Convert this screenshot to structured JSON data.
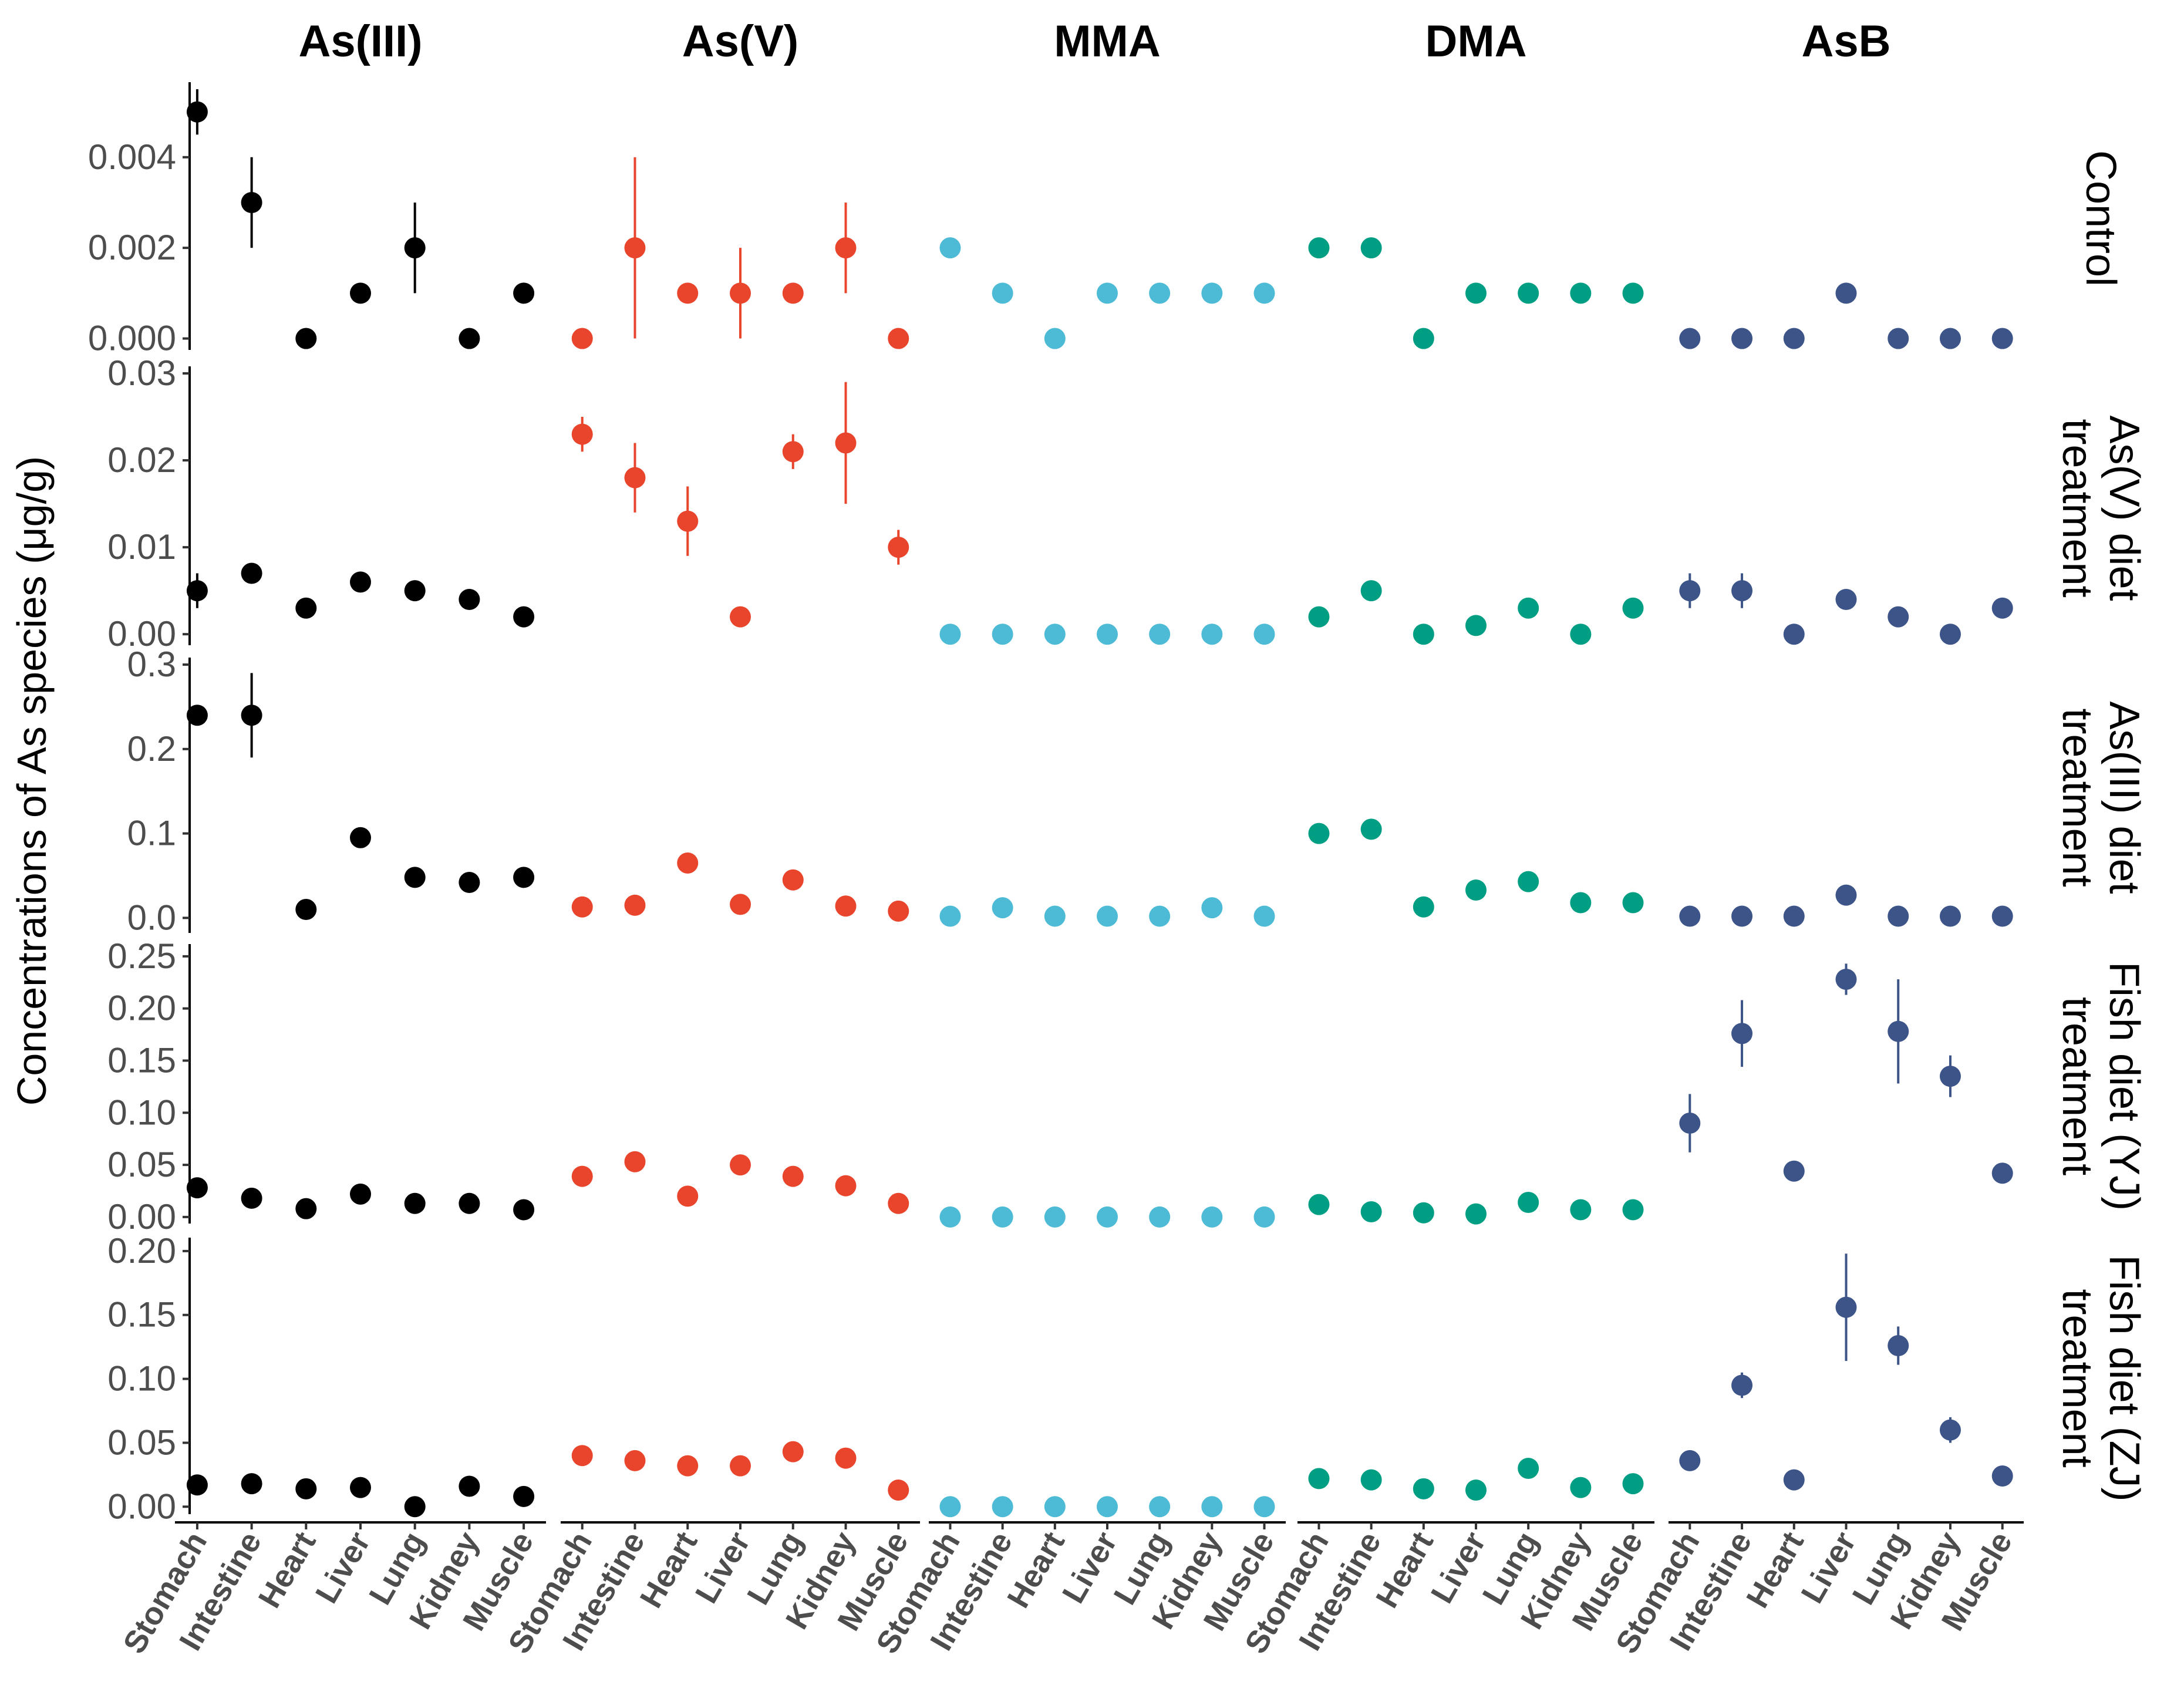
{
  "chart_data": {
    "type": "scatter",
    "title": "",
    "ylabel": "Concentrations of As species (μg/g)",
    "xlabel": "",
    "categories": [
      "Stomach",
      "Intestine",
      "Heart",
      "Liver",
      "Lung",
      "Kidney",
      "Muscle"
    ],
    "species": [
      {
        "name": "As(III)",
        "color": "#000000"
      },
      {
        "name": "As(V)",
        "color": "#e8452c"
      },
      {
        "name": "MMA",
        "color": "#4dbbd5"
      },
      {
        "name": "DMA",
        "color": "#009e82"
      },
      {
        "name": "AsB",
        "color": "#3c5488"
      }
    ],
    "grid": false,
    "rows": [
      {
        "label_lines": [
          "Control"
        ],
        "ylim": [
          -0.0002,
          0.0055
        ],
        "ticks": [
          0,
          0.002,
          0.004
        ],
        "tick_labels": [
          "0.000",
          "0.002",
          "0.004"
        ],
        "series": [
          {
            "values": [
              0.005,
              0.003,
              0,
              0.001,
              0.002,
              0,
              0.001
            ],
            "errors": [
              0.0005,
              0.001,
              0,
              0,
              0.001,
              0,
              0
            ]
          },
          {
            "values": [
              0,
              0.002,
              0.001,
              0.001,
              0.001,
              0.002,
              0
            ],
            "errors": [
              0,
              0.002,
              0,
              0.001,
              0,
              0.001,
              0
            ]
          },
          {
            "values": [
              0.002,
              0.001,
              0,
              0.001,
              0.001,
              0.001,
              0.001
            ],
            "errors": [
              0,
              0,
              0,
              0,
              0,
              0,
              0
            ]
          },
          {
            "values": [
              0.002,
              0.002,
              0,
              0.001,
              0.001,
              0.001,
              0.001
            ],
            "errors": [
              0,
              0,
              0,
              0,
              0,
              0,
              0
            ]
          },
          {
            "values": [
              0,
              0,
              0,
              0.001,
              0,
              0,
              0
            ],
            "errors": [
              0,
              0,
              0,
              0,
              0,
              0,
              0
            ]
          }
        ]
      },
      {
        "label_lines": [
          "As(V) diet",
          "treatment"
        ],
        "ylim": [
          -0.001,
          0.03
        ],
        "ticks": [
          0,
          0.01,
          0.02,
          0.03
        ],
        "tick_labels": [
          "0.00",
          "0.01",
          "0.02",
          "0.03"
        ],
        "series": [
          {
            "values": [
              0.005,
              0.007,
              0.003,
              0.006,
              0.005,
              0.004,
              0.002
            ],
            "errors": [
              0.002,
              0,
              0,
              0,
              0,
              0,
              0
            ]
          },
          {
            "values": [
              0.023,
              0.018,
              0.013,
              0.002,
              0.021,
              0.022,
              0.01
            ],
            "errors": [
              0.002,
              0.004,
              0.004,
              0,
              0.002,
              0.007,
              0.002
            ]
          },
          {
            "values": [
              0,
              0,
              0,
              0,
              0,
              0,
              0
            ],
            "errors": [
              0,
              0,
              0,
              0,
              0,
              0,
              0
            ]
          },
          {
            "values": [
              0.002,
              0.005,
              0,
              0.001,
              0.003,
              0,
              0.003
            ],
            "errors": [
              0,
              0,
              0,
              0,
              0,
              0,
              0
            ]
          },
          {
            "values": [
              0.005,
              0.005,
              0,
              0.004,
              0.002,
              0,
              0.003
            ],
            "errors": [
              0.002,
              0.002,
              0,
              0,
              0,
              0,
              0
            ]
          }
        ]
      },
      {
        "label_lines": [
          "As(III) diet",
          "treatment"
        ],
        "ylim": [
          -0.015,
          0.3
        ],
        "ticks": [
          0,
          0.1,
          0.2,
          0.3
        ],
        "tick_labels": [
          "0.0",
          "0.1",
          "0.2",
          "0.3"
        ],
        "series": [
          {
            "values": [
              0.24,
              0.24,
              0.01,
              0.095,
              0.048,
              0.042,
              0.048
            ],
            "errors": [
              0,
              0.05,
              0,
              0,
              0,
              0,
              0
            ]
          },
          {
            "values": [
              0.013,
              0.015,
              0.065,
              0.016,
              0.045,
              0.014,
              0.008
            ],
            "errors": [
              0,
              0,
              0,
              0,
              0,
              0,
              0
            ]
          },
          {
            "values": [
              0.002,
              0.012,
              0.002,
              0.002,
              0.002,
              0.012,
              0.002
            ],
            "errors": [
              0,
              0,
              0,
              0,
              0,
              0,
              0
            ]
          },
          {
            "values": [
              0.1,
              0.105,
              0.013,
              0.033,
              0.043,
              0.018,
              0.018
            ],
            "errors": [
              0,
              0,
              0,
              0,
              0,
              0,
              0
            ]
          },
          {
            "values": [
              0.002,
              0.002,
              0.002,
              0.027,
              0.002,
              0.002,
              0.002
            ],
            "errors": [
              0,
              0,
              0,
              0,
              0,
              0,
              0
            ]
          }
        ]
      },
      {
        "label_lines": [
          "Fish diet (YJ)",
          "treatment"
        ],
        "ylim": [
          -0.004,
          0.255
        ],
        "ticks": [
          0,
          0.05,
          0.1,
          0.15,
          0.2,
          0.25
        ],
        "tick_labels": [
          "0.00",
          "0.05",
          "0.10",
          "0.15",
          "0.20",
          "0.25"
        ],
        "series": [
          {
            "values": [
              0.028,
              0.018,
              0.008,
              0.022,
              0.013,
              0.013,
              0.007
            ],
            "errors": [
              0,
              0,
              0,
              0,
              0,
              0,
              0
            ]
          },
          {
            "values": [
              0.039,
              0.053,
              0.02,
              0.05,
              0.039,
              0.03,
              0.013
            ],
            "errors": [
              0,
              0,
              0,
              0,
              0,
              0.007,
              0
            ]
          },
          {
            "values": [
              0,
              0,
              0,
              0,
              0,
              0,
              0
            ],
            "errors": [
              0,
              0,
              0,
              0,
              0,
              0,
              0
            ]
          },
          {
            "values": [
              0.012,
              0.005,
              0.004,
              0.003,
              0.014,
              0.007,
              0.007
            ],
            "errors": [
              0,
              0,
              0,
              0,
              0,
              0,
              0
            ]
          },
          {
            "values": [
              0.09,
              0.176,
              0.044,
              0.228,
              0.178,
              0.135,
              0.042
            ],
            "errors": [
              0.028,
              0.032,
              0,
              0.015,
              0.05,
              0.02,
              0
            ]
          }
        ]
      },
      {
        "label_lines": [
          "Fish diet (ZJ)",
          "treatment"
        ],
        "ylim": [
          -0.004,
          0.205
        ],
        "ticks": [
          0,
          0.05,
          0.1,
          0.15,
          0.2
        ],
        "tick_labels": [
          "0.00",
          "0.05",
          "0.10",
          "0.15",
          "0.20"
        ],
        "series": [
          {
            "values": [
              0.017,
              0.018,
              0.014,
              0.015,
              0,
              0.016,
              0.008
            ],
            "errors": [
              0,
              0,
              0,
              0,
              0,
              0,
              0
            ]
          },
          {
            "values": [
              0.04,
              0.036,
              0.032,
              0.032,
              0.043,
              0.038,
              0.013
            ],
            "errors": [
              0,
              0,
              0,
              0.007,
              0,
              0.006,
              0
            ]
          },
          {
            "values": [
              0,
              0,
              0,
              0,
              0,
              0,
              0
            ],
            "errors": [
              0,
              0,
              0,
              0,
              0,
              0,
              0
            ]
          },
          {
            "values": [
              0.022,
              0.021,
              0.014,
              0.013,
              0.03,
              0.015,
              0.018
            ],
            "errors": [
              0,
              0,
              0,
              0,
              0,
              0,
              0
            ]
          },
          {
            "values": [
              0.036,
              0.095,
              0.021,
              0.156,
              0.126,
              0.06,
              0.024
            ],
            "errors": [
              0,
              0.01,
              0,
              0.042,
              0.015,
              0.01,
              0
            ]
          }
        ]
      }
    ]
  }
}
